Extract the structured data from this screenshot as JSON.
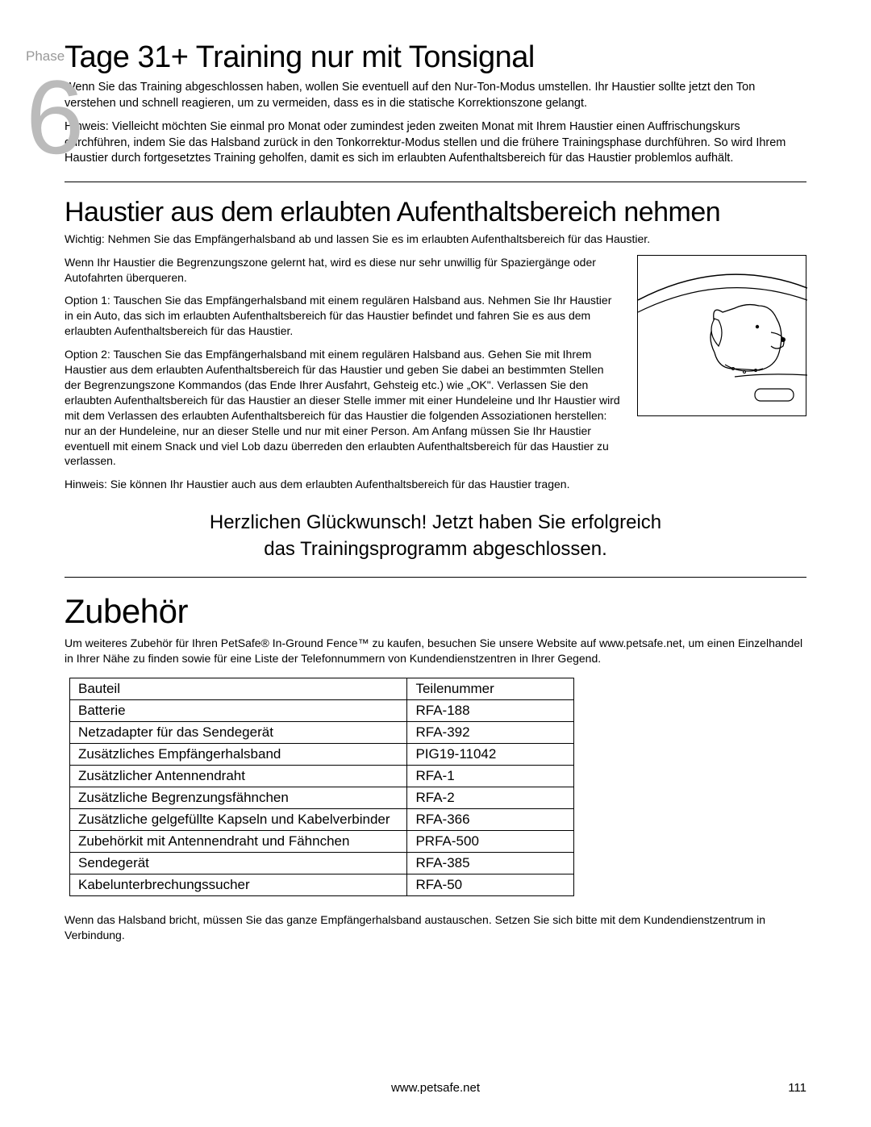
{
  "phase": {
    "label": "Phase",
    "number": "6"
  },
  "section1": {
    "title": "Tage 31+ Training nur mit Tonsignal",
    "p1": "Wenn Sie das Training abgeschlossen haben, wollen Sie eventuell auf den Nur-Ton-Modus umstellen. Ihr Haustier sollte jetzt den Ton verstehen und schnell reagieren, um zu vermeiden, dass es in die statische Korrektionszone gelangt.",
    "p2": "Hinweis: Vielleicht möchten Sie einmal pro Monat oder zumindest jeden zweiten Monat mit Ihrem Haustier einen Auffrischungskurs durchführen, indem Sie das Halsband zurück in den Tonkorrektur-Modus stellen und die frühere Trainingsphase durchführen. So wird Ihrem Haustier durch fortgesetztes Training geholfen, damit es sich im erlaubten Aufenthaltsbereich für das Haustier problemlos aufhält."
  },
  "section2": {
    "title": "Haustier aus dem erlaubten Aufenthaltsbereich nehmen",
    "important": "Wichtig: Nehmen Sie das Empfängerhalsband ab und lassen Sie es im erlaubten Aufenthaltsbereich für das Haustier.",
    "intro": "Wenn Ihr Haustier die Begrenzungszone gelernt hat, wird es diese nur sehr unwillig für Spaziergänge oder Autofahrten überqueren.",
    "opt1": "Option 1:  Tauschen Sie das Empfängerhalsband mit einem regulären Halsband aus. Nehmen Sie Ihr Haustier in ein Auto, das sich im erlaubten Aufenthaltsbereich für das Haustier befindet und fahren Sie es aus dem erlaubten Aufenthaltsbereich für das Haustier.",
    "opt2": "Option 2:  Tauschen Sie das Empfängerhalsband mit einem regulären Halsband aus. Gehen Sie mit Ihrem Haustier aus dem erlaubten Aufenthaltsbereich für das Haustier und geben Sie dabei an bestimmten Stellen der Begrenzungszone Kommandos (das Ende Ihrer Ausfahrt, Gehsteig etc.) wie „OK\". Verlassen Sie den erlaubten Aufenthaltsbereich für das Haustier an dieser Stelle immer mit einer Hundeleine und Ihr Haustier wird mit dem Verlassen des erlaubten Aufenthaltsbereich für das Haustier die folgenden Assoziationen herstellen: nur an der Hundeleine, nur an dieser Stelle und nur mit einer Person. Am Anfang müssen Sie Ihr Haustier eventuell mit einem Snack und viel Lob dazu überreden den erlaubten Aufenthaltsbereich für das Haustier zu verlassen.",
    "note": "Hinweis: Sie können Ihr Haustier auch aus dem erlaubten Aufenthaltsbereich für das Haustier tragen."
  },
  "congrats": {
    "line1": "Herzlichen Glückwunsch! Jetzt haben Sie erfolgreich",
    "line2": "das Trainingsprogramm abgeschlossen."
  },
  "accessories": {
    "title": "Zubehör",
    "intro": "Um weiteres Zubehör für Ihren PetSafe® In-Ground Fence™ zu kaufen, besuchen Sie unsere Website auf www.petsafe.net, um einen Einzelhandel in Ihrer Nähe zu finden sowie für eine Liste der Telefonnummern von Kundendienstzentren in Ihrer Gegend.",
    "table": {
      "header": {
        "part": "Bauteil",
        "num": "Teilenummer"
      },
      "rows": [
        {
          "part": "Batterie",
          "num": "RFA-188"
        },
        {
          "part": "Netzadapter für das Sendegerät",
          "num": "RFA-392"
        },
        {
          "part": "Zusätzliches Empfängerhalsband",
          "num": "PIG19-11042"
        },
        {
          "part": "Zusätzlicher Antennendraht",
          "num": "RFA-1"
        },
        {
          "part": "Zusätzliche Begrenzungsfähnchen",
          "num": "RFA-2"
        },
        {
          "part": "Zusätzliche gelgefüllte Kapseln und Kabelverbinder",
          "num": "RFA-366"
        },
        {
          "part": "Zubehörkit mit Antennendraht und Fähnchen",
          "num": "PRFA-500"
        },
        {
          "part": "Sendegerät",
          "num": "RFA-385"
        },
        {
          "part": "Kabelunterbrechungssucher",
          "num": "RFA-50"
        }
      ]
    },
    "footnote": "Wenn das Halsband bricht, müssen Sie das ganze Empfängerhalsband austauschen. Setzen Sie sich bitte mit dem Kundendienstzentrum in Verbindung."
  },
  "footer": {
    "url": "www.petsafe.net",
    "page": "111"
  }
}
